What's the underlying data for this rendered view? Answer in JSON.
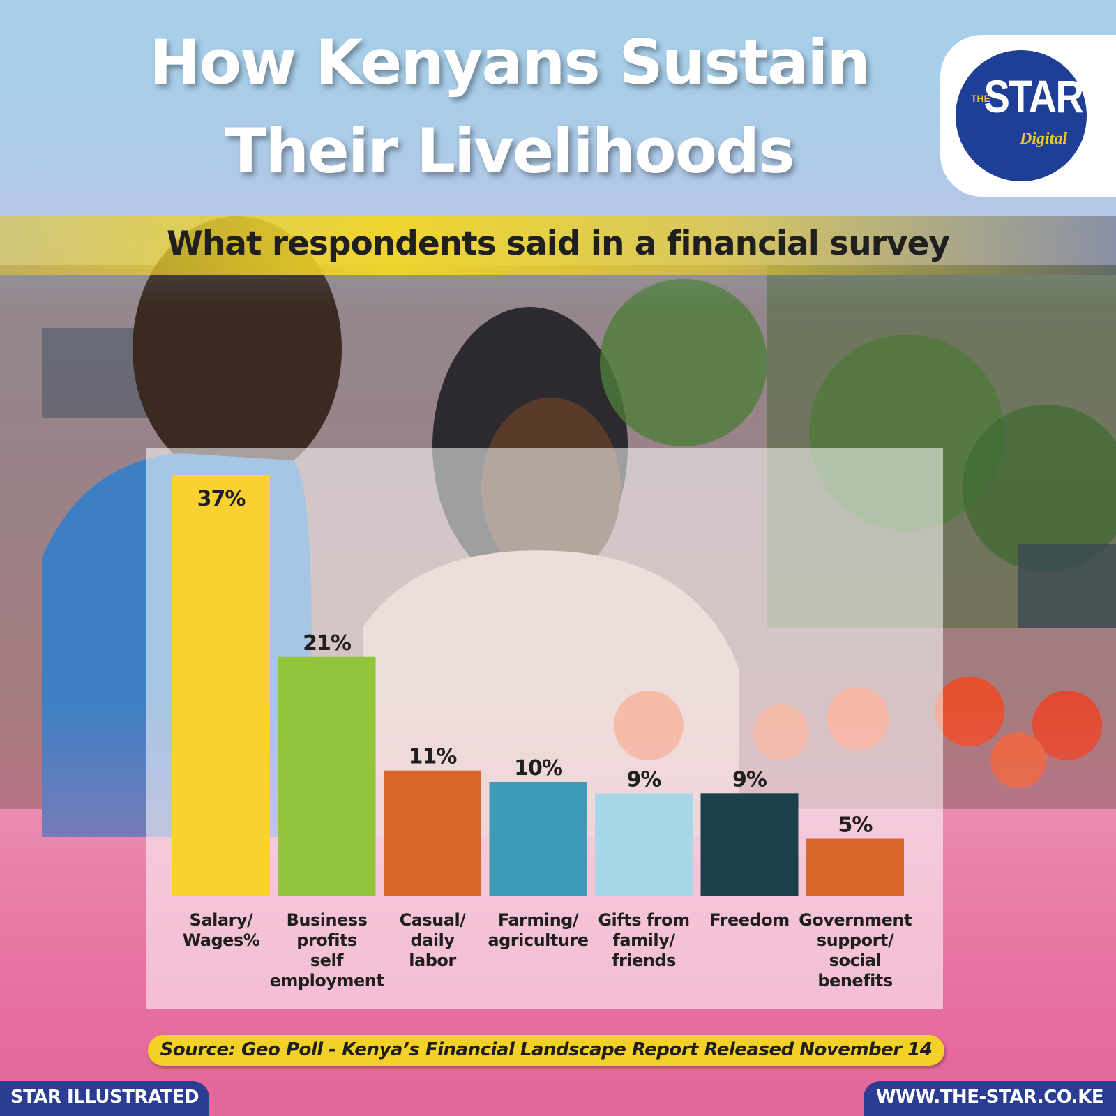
{
  "header": {
    "title_line_1": "How Kenyans Sustain",
    "title_line_2": "Their Livelihoods",
    "subtitle": "What respondents said in a financial survey"
  },
  "logo": {
    "brand": "STAR",
    "prefix": "THE",
    "suffix": "Digital",
    "disc_color": "#1f3f96",
    "accent_color": "#f3c52c"
  },
  "chart_data": {
    "type": "bar",
    "categories": [
      [
        "Salary/",
        "Wages%"
      ],
      [
        "Business",
        "profits",
        "self",
        "employment"
      ],
      [
        "Casual/",
        "daily",
        "labor"
      ],
      [
        "Farming/",
        "agriculture"
      ],
      [
        "Gifts from",
        "family/",
        "friends"
      ],
      [
        "Freedom"
      ],
      [
        "Government",
        "support/",
        "social",
        "benefits"
      ]
    ],
    "values": [
      37,
      21,
      11,
      10,
      9,
      9,
      5
    ],
    "value_labels": [
      "37%",
      "21%",
      "11%",
      "10%",
      "9%",
      "9%",
      "5%"
    ],
    "colors": [
      "#f9d232",
      "#92c43c",
      "#d9662a",
      "#3e9bb8",
      "#a8d8e8",
      "#1b404c",
      "#d9662a"
    ],
    "ylim": [
      0,
      37
    ],
    "grid": false,
    "legend": "none"
  },
  "source": "Source: Geo Poll - Kenya’s Financial Landscape Report Released November 14",
  "footer": {
    "left": "STAR ILLUSTRATED",
    "right": "WWW.THE-STAR.CO.KE"
  }
}
